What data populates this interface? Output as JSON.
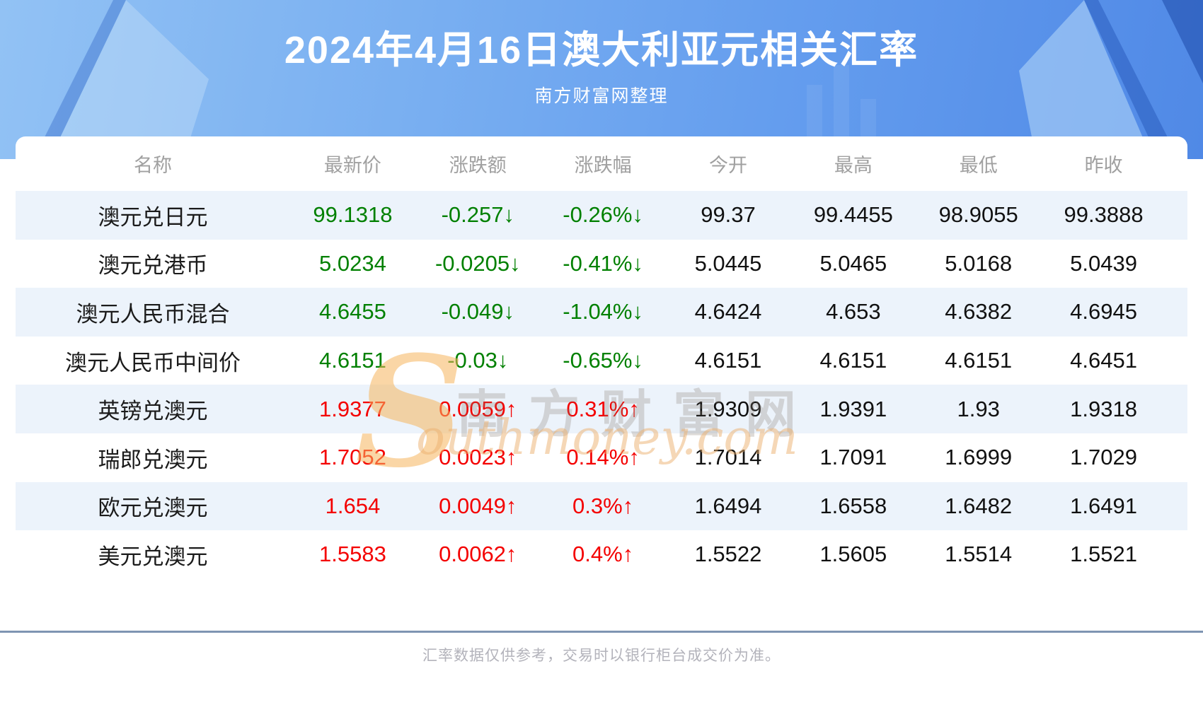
{
  "header": {
    "title": "2024年4月16日澳大利亚元相关汇率",
    "subtitle": "南方财富网整理"
  },
  "table": {
    "columns": [
      "名称",
      "最新价",
      "涨跌额",
      "涨跌幅",
      "今开",
      "最高",
      "最低",
      "昨收"
    ],
    "rows": [
      {
        "name": "澳元兑日元",
        "latest": "99.1318",
        "change": "-0.257↓",
        "change_pct": "-0.26%↓",
        "open": "99.37",
        "high": "99.4455",
        "low": "98.9055",
        "prev_close": "99.3888",
        "trend": "down"
      },
      {
        "name": "澳元兑港币",
        "latest": "5.0234",
        "change": "-0.0205↓",
        "change_pct": "-0.41%↓",
        "open": "5.0445",
        "high": "5.0465",
        "low": "5.0168",
        "prev_close": "5.0439",
        "trend": "down"
      },
      {
        "name": "澳元人民币混合",
        "latest": "4.6455",
        "change": "-0.049↓",
        "change_pct": "-1.04%↓",
        "open": "4.6424",
        "high": "4.653",
        "low": "4.6382",
        "prev_close": "4.6945",
        "trend": "down"
      },
      {
        "name": "澳元人民币中间价",
        "latest": "4.6151",
        "change": "-0.03↓",
        "change_pct": "-0.65%↓",
        "open": "4.6151",
        "high": "4.6151",
        "low": "4.6151",
        "prev_close": "4.6451",
        "trend": "down"
      },
      {
        "name": "英镑兑澳元",
        "latest": "1.9377",
        "change": "0.0059↑",
        "change_pct": "0.31%↑",
        "open": "1.9309",
        "high": "1.9391",
        "low": "1.93",
        "prev_close": "1.9318",
        "trend": "up"
      },
      {
        "name": "瑞郎兑澳元",
        "latest": "1.7052",
        "change": "0.0023↑",
        "change_pct": "0.14%↑",
        "open": "1.7014",
        "high": "1.7091",
        "low": "1.6999",
        "prev_close": "1.7029",
        "trend": "up"
      },
      {
        "name": "欧元兑澳元",
        "latest": "1.654",
        "change": "0.0049↑",
        "change_pct": "0.3%↑",
        "open": "1.6494",
        "high": "1.6558",
        "low": "1.6482",
        "prev_close": "1.6491",
        "trend": "up"
      },
      {
        "name": "美元兑澳元",
        "latest": "1.5583",
        "change": "0.0062↑",
        "change_pct": "0.4%↑",
        "open": "1.5522",
        "high": "1.5605",
        "low": "1.5514",
        "prev_close": "1.5521",
        "trend": "up"
      }
    ]
  },
  "chart_data": {
    "type": "table",
    "title": "2024年4月16日澳大利亚元相关汇率",
    "columns": [
      "名称",
      "最新价",
      "涨跌额",
      "涨跌幅",
      "今开",
      "最高",
      "最低",
      "昨收"
    ],
    "rows": [
      [
        "澳元兑日元",
        99.1318,
        -0.257,
        "-0.26%",
        99.37,
        99.4455,
        98.9055,
        99.3888
      ],
      [
        "澳元兑港币",
        5.0234,
        -0.0205,
        "-0.41%",
        5.0445,
        5.0465,
        5.0168,
        5.0439
      ],
      [
        "澳元人民币混合",
        4.6455,
        -0.049,
        "-1.04%",
        4.6424,
        4.653,
        4.6382,
        4.6945
      ],
      [
        "澳元人民币中间价",
        4.6151,
        -0.03,
        "-0.65%",
        4.6151,
        4.6151,
        4.6151,
        4.6451
      ],
      [
        "英镑兑澳元",
        1.9377,
        0.0059,
        "0.31%",
        1.9309,
        1.9391,
        1.93,
        1.9318
      ],
      [
        "瑞郎兑澳元",
        1.7052,
        0.0023,
        "0.14%",
        1.7014,
        1.7091,
        1.6999,
        1.7029
      ],
      [
        "欧元兑澳元",
        1.654,
        0.0049,
        "0.3%",
        1.6494,
        1.6558,
        1.6482,
        1.6491
      ],
      [
        "美元兑澳元",
        1.5583,
        0.0062,
        "0.4%",
        1.5522,
        1.5605,
        1.5514,
        1.5521
      ]
    ]
  },
  "watermark": {
    "s_glyph": "S",
    "cn": "南方财富网",
    "en": "outhmoney.com"
  },
  "footer": {
    "disclaimer": "汇率数据仅供参考，交易时以银行柜台成交价为准。"
  },
  "colors": {
    "up_red": "#f40000",
    "down_green": "#008000",
    "row_alt_bg": "#ecf3fb",
    "header_blue": "#5e98ea",
    "divider_slate": "#7e95b2"
  }
}
